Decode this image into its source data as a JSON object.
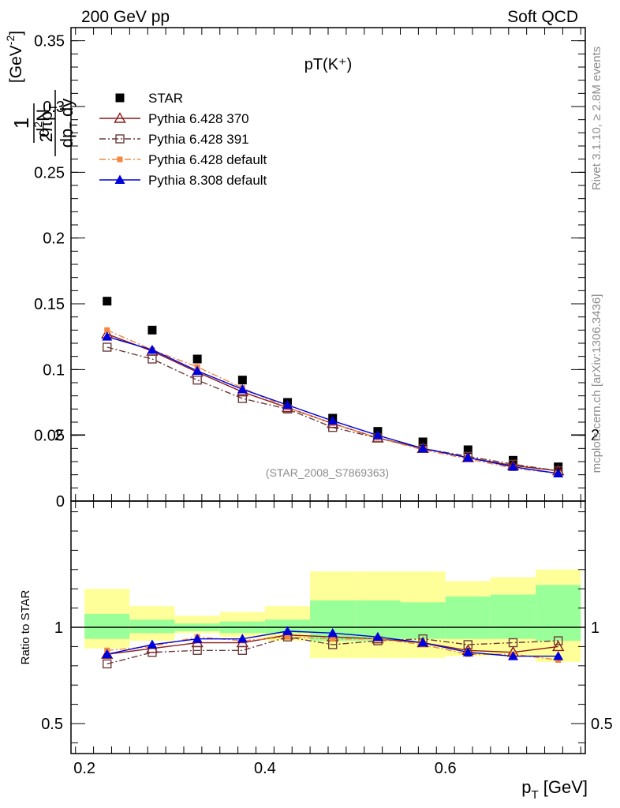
{
  "header": {
    "left": "200 GeV pp",
    "right": "Soft QCD"
  },
  "side": {
    "rivet_text": "Rivet 3.1.10, ≥ 2.8M events",
    "source_text": "mcplots.cern.ch [arXiv:1306.3436]"
  },
  "chart_data": [
    {
      "type": "scatter",
      "title": "pT(K⁺)",
      "watermark": "(STAR_2008_S7869363)",
      "ylabel": "1/(2π p_T) d²N/(dp_T dy) [GeV⁻²]",
      "ylim": [
        0,
        0.36
      ],
      "yticks": [
        "0",
        "0.05",
        "0.1",
        "0.15",
        "0.2",
        "0.25",
        "0.3",
        "0.35"
      ],
      "xlim": [
        0.185,
        0.755
      ],
      "x": [
        0.225,
        0.275,
        0.325,
        0.375,
        0.425,
        0.475,
        0.525,
        0.575,
        0.625,
        0.675,
        0.725
      ],
      "legend_position": "top-left",
      "series": [
        {
          "name": "STAR",
          "marker": "square-filled",
          "line": "none",
          "color": "#000000",
          "values": [
            0.152,
            0.13,
            0.108,
            0.092,
            0.075,
            0.063,
            0.053,
            0.045,
            0.039,
            0.031,
            0.026
          ]
        },
        {
          "name": "Pythia 6.428 370",
          "marker": "triangle-open",
          "line": "solid",
          "color": "#8b1a1a",
          "values": [
            0.127,
            0.114,
            0.098,
            0.083,
            0.071,
            0.059,
            0.048,
            0.04,
            0.033,
            0.027,
            0.023
          ]
        },
        {
          "name": "Pythia 6.428 391",
          "marker": "square-open",
          "line": "dashdot",
          "color": "#6b3a3a",
          "values": [
            0.117,
            0.108,
            0.092,
            0.078,
            0.07,
            0.056,
            0.048,
            0.04,
            0.034,
            0.028,
            0.023
          ]
        },
        {
          "name": "Pythia 6.428 default",
          "marker": "square-small-filled",
          "line": "dashdot",
          "color": "#f5873c",
          "values": [
            0.13,
            0.115,
            0.102,
            0.086,
            0.071,
            0.059,
            0.048,
            0.039,
            0.032,
            0.025,
            0.021
          ]
        },
        {
          "name": "Pythia 8.308 default",
          "marker": "triangle-filled",
          "line": "solid",
          "color": "#0000dd",
          "values": [
            0.125,
            0.115,
            0.099,
            0.085,
            0.073,
            0.061,
            0.05,
            0.04,
            0.033,
            0.026,
            0.021
          ]
        }
      ]
    },
    {
      "type": "scatter",
      "ylabel": "Ratio to STAR",
      "xlabel": "p_T [GeV]",
      "ylim": [
        0.35,
        2.3
      ],
      "yticks": [
        "0.5",
        "1",
        "2"
      ],
      "xticks": [
        "0.2",
        "0.4",
        "0.6"
      ],
      "xlim": [
        0.185,
        0.755
      ],
      "x": [
        0.225,
        0.275,
        0.325,
        0.375,
        0.425,
        0.475,
        0.525,
        0.575,
        0.625,
        0.675,
        0.725
      ],
      "band_bins": [
        [
          0.2,
          0.25
        ],
        [
          0.25,
          0.3
        ],
        [
          0.3,
          0.35
        ],
        [
          0.35,
          0.4
        ],
        [
          0.4,
          0.45
        ],
        [
          0.45,
          0.5
        ],
        [
          0.5,
          0.55
        ],
        [
          0.55,
          0.6
        ],
        [
          0.6,
          0.65
        ],
        [
          0.65,
          0.7
        ],
        [
          0.7,
          0.75
        ]
      ],
      "band_inner": [
        [
          0.94,
          1.07
        ],
        [
          0.97,
          1.04
        ],
        [
          0.98,
          1.02
        ],
        [
          0.97,
          1.03
        ],
        [
          0.97,
          1.04
        ],
        [
          0.93,
          1.14
        ],
        [
          0.93,
          1.14
        ],
        [
          0.94,
          1.13
        ],
        [
          0.94,
          1.16
        ],
        [
          0.94,
          1.17
        ],
        [
          0.93,
          1.22
        ]
      ],
      "band_outer": [
        [
          0.89,
          1.2
        ],
        [
          0.93,
          1.11
        ],
        [
          0.97,
          1.06
        ],
        [
          0.95,
          1.08
        ],
        [
          0.93,
          1.11
        ],
        [
          0.84,
          1.29
        ],
        [
          0.84,
          1.29
        ],
        [
          0.84,
          1.29
        ],
        [
          0.85,
          1.24
        ],
        [
          0.85,
          1.26
        ],
        [
          0.82,
          1.3
        ]
      ],
      "series": [
        {
          "name": "Pythia 6.428 370",
          "marker": "triangle-open",
          "line": "solid",
          "color": "#8b1a1a",
          "values": [
            0.86,
            0.89,
            0.92,
            0.92,
            0.96,
            0.95,
            0.94,
            0.92,
            0.88,
            0.87,
            0.9
          ]
        },
        {
          "name": "Pythia 6.428 391",
          "marker": "square-open",
          "line": "dashdot",
          "color": "#6b3a3a",
          "values": [
            0.81,
            0.87,
            0.88,
            0.88,
            0.95,
            0.91,
            0.93,
            0.94,
            0.91,
            0.92,
            0.93
          ]
        },
        {
          "name": "Pythia 6.428 default",
          "marker": "square-small-filled",
          "line": "dashdot",
          "color": "#f5873c",
          "values": [
            0.88,
            0.9,
            0.95,
            0.93,
            0.95,
            0.94,
            0.94,
            0.91,
            0.86,
            0.86,
            0.83
          ]
        },
        {
          "name": "Pythia 8.308 default",
          "marker": "triangle-filled",
          "line": "solid",
          "color": "#0000dd",
          "values": [
            0.86,
            0.91,
            0.94,
            0.94,
            0.98,
            0.97,
            0.95,
            0.92,
            0.87,
            0.85,
            0.85
          ]
        }
      ]
    }
  ]
}
